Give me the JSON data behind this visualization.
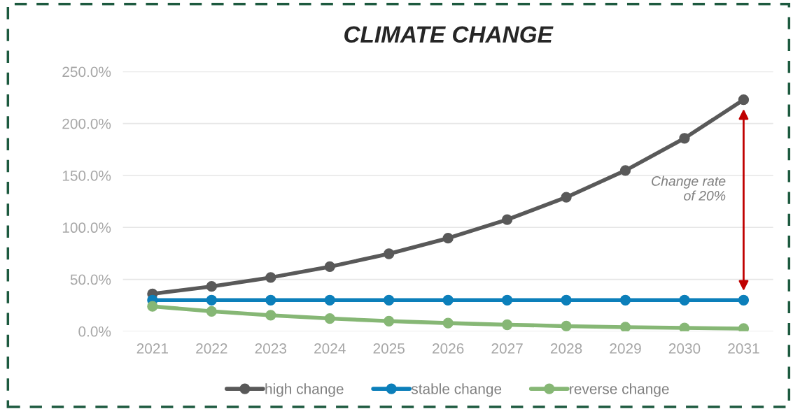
{
  "chart_data": {
    "type": "line",
    "title": "CLIMATE CHANGE",
    "categories": [
      "2021",
      "2022",
      "2023",
      "2024",
      "2025",
      "2026",
      "2027",
      "2028",
      "2029",
      "2030",
      "2031"
    ],
    "series": [
      {
        "name": "high change",
        "color": "#595959",
        "values": [
          36,
          43.2,
          51.8,
          62.2,
          74.6,
          89.6,
          107.5,
          129,
          154.8,
          185.8,
          222.9
        ]
      },
      {
        "name": "stable change",
        "color": "#0c7fba",
        "values": [
          30,
          30,
          30,
          30,
          30,
          30,
          30,
          30,
          30,
          30,
          30
        ]
      },
      {
        "name": "reverse change",
        "color": "#86b775",
        "values": [
          24,
          19.2,
          15.4,
          12.3,
          9.8,
          7.9,
          6.3,
          5.0,
          4.0,
          3.2,
          2.6
        ]
      }
    ],
    "ylim": [
      0,
      250
    ],
    "yticks": [
      {
        "value": 0,
        "label": "0.0%"
      },
      {
        "value": 50,
        "label": "50.0%"
      },
      {
        "value": 100,
        "label": "100.0%"
      },
      {
        "value": 150,
        "label": "150.0%"
      },
      {
        "value": 200,
        "label": "200.0%"
      },
      {
        "value": 250,
        "label": "250.0%"
      }
    ],
    "grid": "y",
    "legend": "bottom",
    "marker": "circle",
    "line_style": "solid",
    "annotations": [
      "Change rate\nof 20%"
    ]
  }
}
